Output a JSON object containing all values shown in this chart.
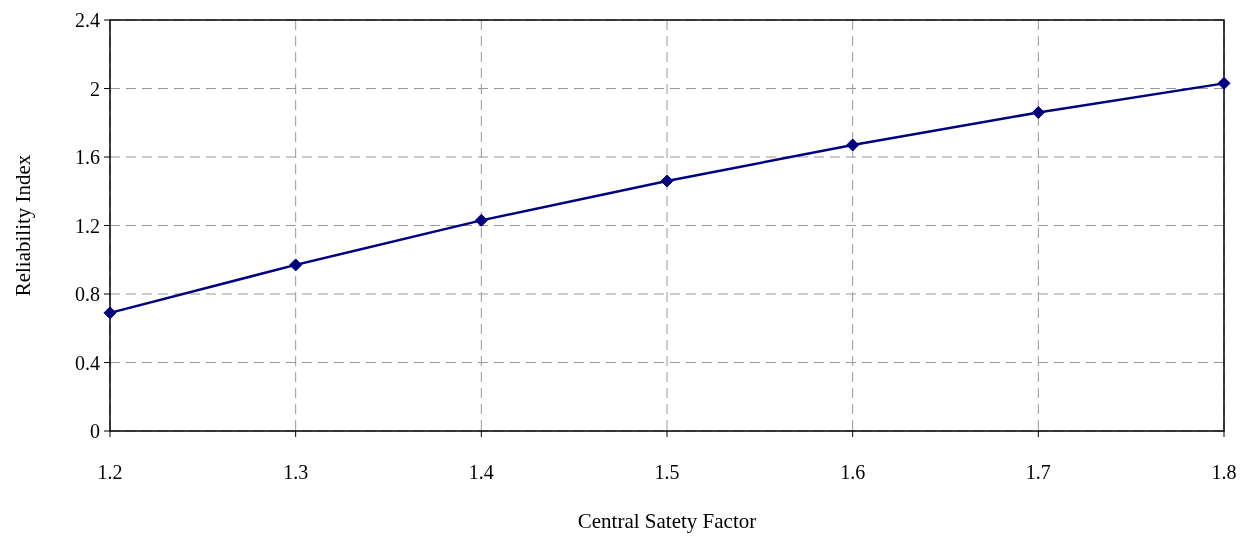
{
  "chart_data": {
    "type": "line",
    "xlabel": "Central Satety Factor",
    "ylabel": "Reliability Index",
    "x": [
      1.2,
      1.3,
      1.4,
      1.5,
      1.6,
      1.7,
      1.8
    ],
    "series": [
      {
        "color": "#000080",
        "values": [
          0.69,
          0.97,
          1.23,
          1.46,
          1.67,
          1.86,
          2.03
        ]
      }
    ],
    "xlim": [
      1.2,
      1.8
    ],
    "xticks": [
      1.2,
      1.3,
      1.4,
      1.5,
      1.6,
      1.7,
      1.8
    ],
    "ylim": [
      0,
      2.4
    ],
    "yticks": [
      0,
      0.4,
      0.8,
      1.2,
      1.6,
      2,
      2.4
    ],
    "grid": true,
    "marker": "diamond",
    "line_style": "solid"
  }
}
